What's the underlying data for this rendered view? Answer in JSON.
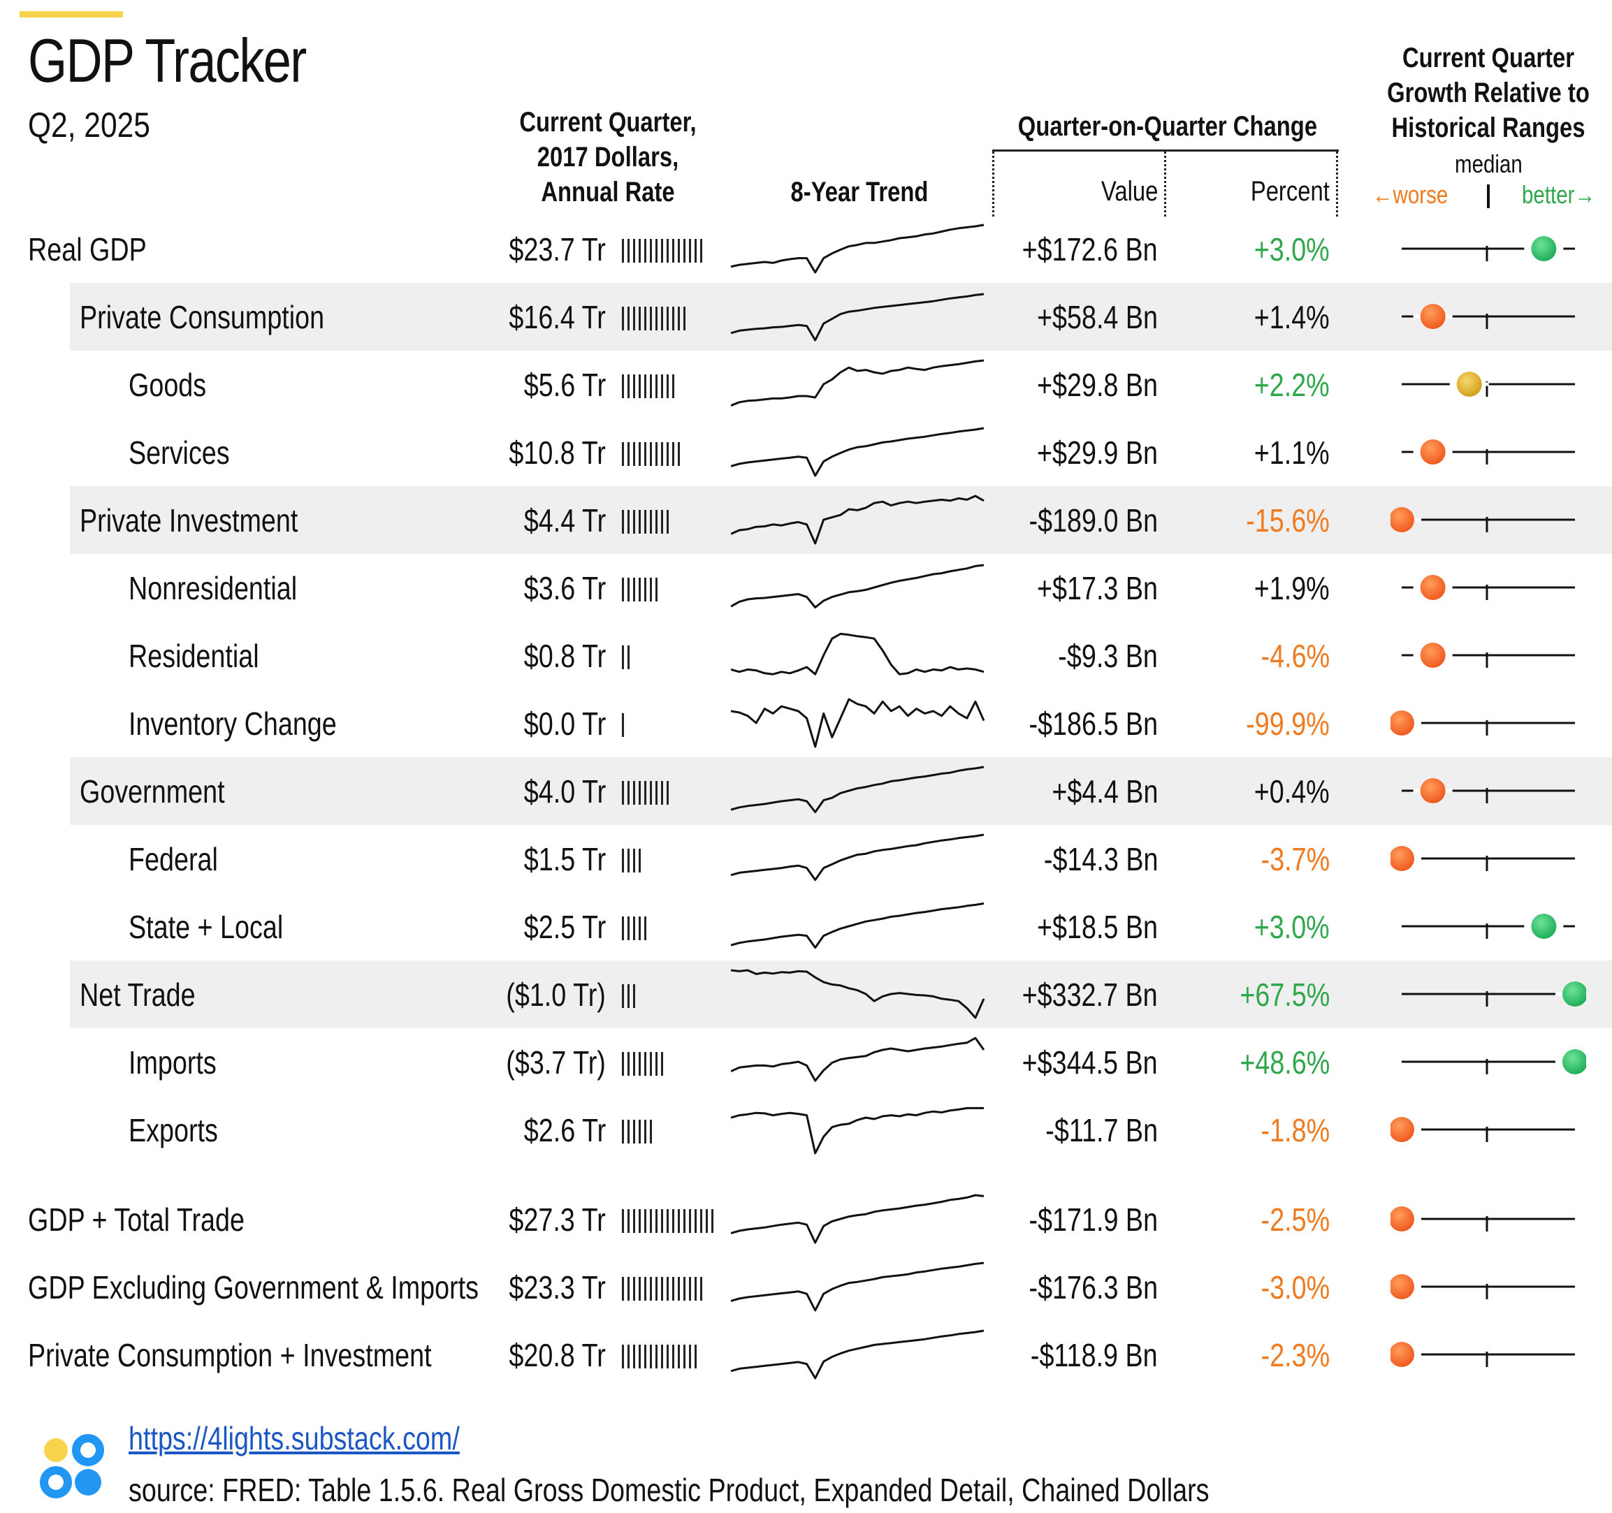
{
  "header": {
    "title": "GDP Tracker",
    "subtitle": "Q2, 2025",
    "col_current_1": "Current Quarter,",
    "col_current_2": "2017 Dollars,",
    "col_current_3": "Annual Rate",
    "col_trend": "8-Year Trend",
    "col_qoq": "Quarter-on-Quarter Change",
    "col_value": "Value",
    "col_percent": "Percent",
    "col_hist_1": "Current Quarter",
    "col_hist_2": "Growth Relative to",
    "col_hist_3": "Historical Ranges",
    "median": "median",
    "worse": "←worse",
    "better": "better→"
  },
  "colors": {
    "green": "#2ea84a",
    "orange": "#f07a1e",
    "black": "#111111",
    "accent": "#f8d44c",
    "link": "#1a56c4"
  },
  "chart_data": {
    "type": "table",
    "title": "GDP Tracker",
    "subtitle": "Q2, 2025",
    "columns": [
      "Current Quarter, 2017 Dollars, Annual Rate",
      "8-Year Trend",
      "Quarter-on-Quarter Change Value",
      "Quarter-on-Quarter Change Percent",
      "Current Quarter Growth Relative to Historical Ranges"
    ],
    "rows": [
      {
        "label": "Real GDP",
        "level": 0,
        "shaded": false,
        "current": "$23.7 Tr",
        "bars": 15,
        "value": "+$172.6 Bn",
        "percent": "+3.0%",
        "color": "green",
        "marker": 0.82,
        "marker_color": "green",
        "trend": [
          0.12,
          0.16,
          0.18,
          0.2,
          0.22,
          0.2,
          0.25,
          0.28,
          0.3,
          0.3,
          0.0,
          0.3,
          0.4,
          0.48,
          0.55,
          0.58,
          0.62,
          0.62,
          0.65,
          0.68,
          0.72,
          0.74,
          0.76,
          0.8,
          0.82,
          0.86,
          0.9,
          0.93,
          0.95,
          0.97,
          1.0
        ]
      },
      {
        "label": "Private Consumption",
        "level": 1,
        "shaded": true,
        "current": "$16.4 Tr",
        "bars": 12,
        "value": "+$58.4 Bn",
        "percent": "+1.4%",
        "color": "black",
        "marker": 0.18,
        "marker_color": "orange",
        "trend": [
          0.15,
          0.2,
          0.22,
          0.24,
          0.25,
          0.27,
          0.28,
          0.3,
          0.32,
          0.3,
          0.0,
          0.35,
          0.45,
          0.55,
          0.6,
          0.62,
          0.65,
          0.68,
          0.7,
          0.72,
          0.74,
          0.76,
          0.78,
          0.8,
          0.82,
          0.85,
          0.88,
          0.9,
          0.92,
          0.95,
          0.97
        ]
      },
      {
        "label": "Goods",
        "level": 2,
        "shaded": false,
        "current": "$5.6 Tr",
        "bars": 10,
        "value": "+$29.8 Bn",
        "percent": "+2.2%",
        "color": "green",
        "marker": 0.39,
        "marker_color": "yellow",
        "trend": [
          0.05,
          0.12,
          0.15,
          0.16,
          0.18,
          0.2,
          0.2,
          0.22,
          0.25,
          0.25,
          0.22,
          0.5,
          0.6,
          0.75,
          0.85,
          0.78,
          0.8,
          0.75,
          0.72,
          0.78,
          0.8,
          0.85,
          0.82,
          0.8,
          0.85,
          0.88,
          0.9,
          0.92,
          0.95,
          0.98,
          1.0
        ]
      },
      {
        "label": "Services",
        "level": 2,
        "shaded": false,
        "current": "$10.8 Tr",
        "bars": 11,
        "value": "+$29.9 Bn",
        "percent": "+1.1%",
        "color": "black",
        "marker": 0.18,
        "marker_color": "orange",
        "trend": [
          0.2,
          0.25,
          0.28,
          0.3,
          0.32,
          0.34,
          0.36,
          0.38,
          0.4,
          0.38,
          0.0,
          0.3,
          0.4,
          0.48,
          0.55,
          0.6,
          0.62,
          0.66,
          0.7,
          0.72,
          0.75,
          0.78,
          0.8,
          0.82,
          0.85,
          0.88,
          0.9,
          0.93,
          0.95,
          0.97,
          1.0
        ]
      },
      {
        "label": "Private Investment",
        "level": 1,
        "shaded": true,
        "current": "$4.4 Tr",
        "bars": 9,
        "value": "-$189.0 Bn",
        "percent": "-15.6%",
        "color": "orange",
        "marker": 0.0,
        "marker_color": "orange",
        "trend": [
          0.2,
          0.28,
          0.3,
          0.35,
          0.36,
          0.4,
          0.38,
          0.42,
          0.45,
          0.4,
          0.0,
          0.5,
          0.55,
          0.6,
          0.72,
          0.7,
          0.75,
          0.85,
          0.88,
          0.8,
          0.85,
          0.88,
          0.85,
          0.88,
          0.9,
          0.92,
          0.9,
          0.95,
          0.92,
          1.0,
          0.9
        ]
      },
      {
        "label": "Nonresidential",
        "level": 2,
        "shaded": false,
        "current": "$3.6 Tr",
        "bars": 7,
        "value": "+$17.3 Bn",
        "percent": "+1.9%",
        "color": "black",
        "marker": 0.18,
        "marker_color": "orange",
        "trend": [
          0.1,
          0.2,
          0.25,
          0.27,
          0.28,
          0.3,
          0.32,
          0.34,
          0.36,
          0.3,
          0.08,
          0.22,
          0.3,
          0.35,
          0.4,
          0.42,
          0.45,
          0.5,
          0.55,
          0.6,
          0.64,
          0.67,
          0.7,
          0.74,
          0.78,
          0.8,
          0.84,
          0.87,
          0.9,
          0.95,
          0.97
        ]
      },
      {
        "label": "Residential",
        "level": 2,
        "shaded": false,
        "current": "$0.8 Tr",
        "bars": 2,
        "value": "-$9.3 Bn",
        "percent": "-4.6%",
        "color": "orange",
        "marker": 0.18,
        "marker_color": "orange",
        "trend": [
          0.2,
          0.15,
          0.2,
          0.18,
          0.12,
          0.1,
          0.15,
          0.12,
          0.18,
          0.25,
          0.1,
          0.5,
          0.85,
          0.95,
          0.93,
          0.9,
          0.88,
          0.85,
          0.6,
          0.3,
          0.1,
          0.12,
          0.2,
          0.15,
          0.2,
          0.18,
          0.25,
          0.2,
          0.22,
          0.2,
          0.15
        ]
      },
      {
        "label": "Inventory Change",
        "level": 2,
        "shaded": false,
        "current": "$0.0 Tr",
        "bars": 1,
        "value": "-$186.5 Bn",
        "percent": "-99.9%",
        "color": "orange",
        "marker": 0.0,
        "marker_color": "orange",
        "trend": [
          0.75,
          0.72,
          0.65,
          0.5,
          0.8,
          0.7,
          0.85,
          0.8,
          0.75,
          0.6,
          0.0,
          0.7,
          0.2,
          0.6,
          1.0,
          0.9,
          0.85,
          0.7,
          0.95,
          0.75,
          0.85,
          0.65,
          0.8,
          0.7,
          0.75,
          0.65,
          0.85,
          0.7,
          0.6,
          0.95,
          0.55
        ]
      },
      {
        "label": "Government",
        "level": 1,
        "shaded": true,
        "current": "$4.0 Tr",
        "bars": 9,
        "value": "+$4.4 Bn",
        "percent": "+0.4%",
        "color": "black",
        "marker": 0.18,
        "marker_color": "orange",
        "trend": [
          0.1,
          0.15,
          0.18,
          0.2,
          0.22,
          0.25,
          0.28,
          0.3,
          0.32,
          0.28,
          0.05,
          0.3,
          0.35,
          0.45,
          0.5,
          0.55,
          0.58,
          0.62,
          0.65,
          0.7,
          0.72,
          0.75,
          0.78,
          0.8,
          0.83,
          0.86,
          0.88,
          0.92,
          0.95,
          0.97,
          1.0
        ]
      },
      {
        "label": "Federal",
        "level": 2,
        "shaded": false,
        "current": "$1.5 Tr",
        "bars": 4,
        "value": "-$14.3 Bn",
        "percent": "-3.7%",
        "color": "orange",
        "marker": 0.0,
        "marker_color": "orange",
        "trend": [
          0.15,
          0.2,
          0.22,
          0.24,
          0.26,
          0.28,
          0.3,
          0.33,
          0.35,
          0.3,
          0.05,
          0.3,
          0.38,
          0.46,
          0.52,
          0.58,
          0.6,
          0.65,
          0.68,
          0.7,
          0.73,
          0.76,
          0.78,
          0.82,
          0.85,
          0.88,
          0.9,
          0.93,
          0.95,
          0.97,
          1.0
        ]
      },
      {
        "label": "State + Local",
        "level": 2,
        "shaded": false,
        "current": "$2.5 Tr",
        "bars": 5,
        "value": "+$18.5 Bn",
        "percent": "+3.0%",
        "color": "green",
        "marker": 0.82,
        "marker_color": "green",
        "trend": [
          0.1,
          0.15,
          0.18,
          0.2,
          0.22,
          0.25,
          0.28,
          0.3,
          0.32,
          0.3,
          0.05,
          0.3,
          0.38,
          0.45,
          0.5,
          0.55,
          0.6,
          0.63,
          0.66,
          0.7,
          0.72,
          0.75,
          0.78,
          0.8,
          0.83,
          0.86,
          0.88,
          0.9,
          0.93,
          0.95,
          0.98
        ]
      },
      {
        "label": "Net Trade",
        "level": 1,
        "shaded": true,
        "current": "($1.0 Tr)",
        "bars": 3,
        "value": "+$332.7 Bn",
        "percent": "+67.5%",
        "color": "green",
        "marker": 1.0,
        "marker_color": "green",
        "trend": [
          1.0,
          0.98,
          1.0,
          0.92,
          0.95,
          0.93,
          0.96,
          0.95,
          0.98,
          0.97,
          0.85,
          0.75,
          0.7,
          0.68,
          0.62,
          0.58,
          0.5,
          0.35,
          0.45,
          0.5,
          0.52,
          0.5,
          0.48,
          0.47,
          0.45,
          0.4,
          0.38,
          0.35,
          0.2,
          0.0,
          0.4
        ]
      },
      {
        "label": "Imports",
        "level": 2,
        "shaded": false,
        "current": "($3.7 Tr)",
        "bars": 8,
        "value": "+$344.5 Bn",
        "percent": "+48.6%",
        "color": "green",
        "marker": 1.0,
        "marker_color": "green",
        "trend": [
          0.3,
          0.38,
          0.4,
          0.42,
          0.42,
          0.4,
          0.45,
          0.47,
          0.5,
          0.42,
          0.1,
          0.32,
          0.48,
          0.55,
          0.58,
          0.6,
          0.62,
          0.7,
          0.75,
          0.78,
          0.75,
          0.72,
          0.75,
          0.78,
          0.8,
          0.82,
          0.85,
          0.88,
          0.9,
          1.0,
          0.75
        ]
      },
      {
        "label": "Exports",
        "level": 2,
        "shaded": false,
        "current": "$2.6 Tr",
        "bars": 6,
        "value": "-$11.7 Bn",
        "percent": "-1.8%",
        "color": "orange",
        "marker": 0.0,
        "marker_color": "orange",
        "trend": [
          0.75,
          0.8,
          0.82,
          0.85,
          0.84,
          0.8,
          0.83,
          0.85,
          0.83,
          0.8,
          0.0,
          0.35,
          0.55,
          0.6,
          0.62,
          0.7,
          0.75,
          0.72,
          0.78,
          0.8,
          0.78,
          0.82,
          0.8,
          0.85,
          0.88,
          0.86,
          0.9,
          0.92,
          0.95,
          0.95,
          0.95
        ]
      },
      {
        "label": "GDP + Total Trade",
        "level": 0,
        "shaded": false,
        "current": "$27.3 Tr",
        "bars": 17,
        "value": "-$171.9 Bn",
        "percent": "-2.5%",
        "color": "orange",
        "marker": 0.0,
        "marker_color": "orange",
        "trend": [
          0.2,
          0.25,
          0.28,
          0.3,
          0.32,
          0.35,
          0.38,
          0.4,
          0.42,
          0.38,
          0.0,
          0.35,
          0.45,
          0.5,
          0.55,
          0.58,
          0.6,
          0.65,
          0.68,
          0.7,
          0.72,
          0.75,
          0.78,
          0.8,
          0.83,
          0.86,
          0.9,
          0.92,
          0.95,
          1.0,
          0.98
        ]
      },
      {
        "label": "GDP Excluding Government & Imports",
        "level": 0,
        "shaded": false,
        "current": "$23.3 Tr",
        "bars": 15,
        "value": "-$176.3 Bn",
        "percent": "-3.0%",
        "color": "orange",
        "marker": 0.0,
        "marker_color": "orange",
        "trend": [
          0.2,
          0.25,
          0.28,
          0.3,
          0.32,
          0.34,
          0.36,
          0.38,
          0.4,
          0.35,
          0.0,
          0.35,
          0.45,
          0.52,
          0.58,
          0.6,
          0.63,
          0.66,
          0.7,
          0.72,
          0.74,
          0.76,
          0.8,
          0.82,
          0.85,
          0.88,
          0.9,
          0.92,
          0.95,
          0.98,
          1.0
        ]
      },
      {
        "label": "Private Consumption + Investment",
        "level": 0,
        "shaded": false,
        "current": "$20.8 Tr",
        "bars": 14,
        "value": "-$118.9 Bn",
        "percent": "-2.3%",
        "color": "orange",
        "marker": 0.0,
        "marker_color": "orange",
        "trend": [
          0.15,
          0.2,
          0.22,
          0.24,
          0.26,
          0.28,
          0.3,
          0.32,
          0.34,
          0.3,
          0.0,
          0.35,
          0.45,
          0.52,
          0.58,
          0.62,
          0.66,
          0.7,
          0.72,
          0.74,
          0.76,
          0.78,
          0.8,
          0.82,
          0.85,
          0.88,
          0.9,
          0.93,
          0.95,
          0.97,
          1.0
        ]
      }
    ]
  },
  "footer": {
    "link": "https://4lights.substack.com/",
    "source": "source:  FRED: Table 1.5.6. Real Gross Domestic Product, Expanded Detail, Chained Dollars"
  }
}
